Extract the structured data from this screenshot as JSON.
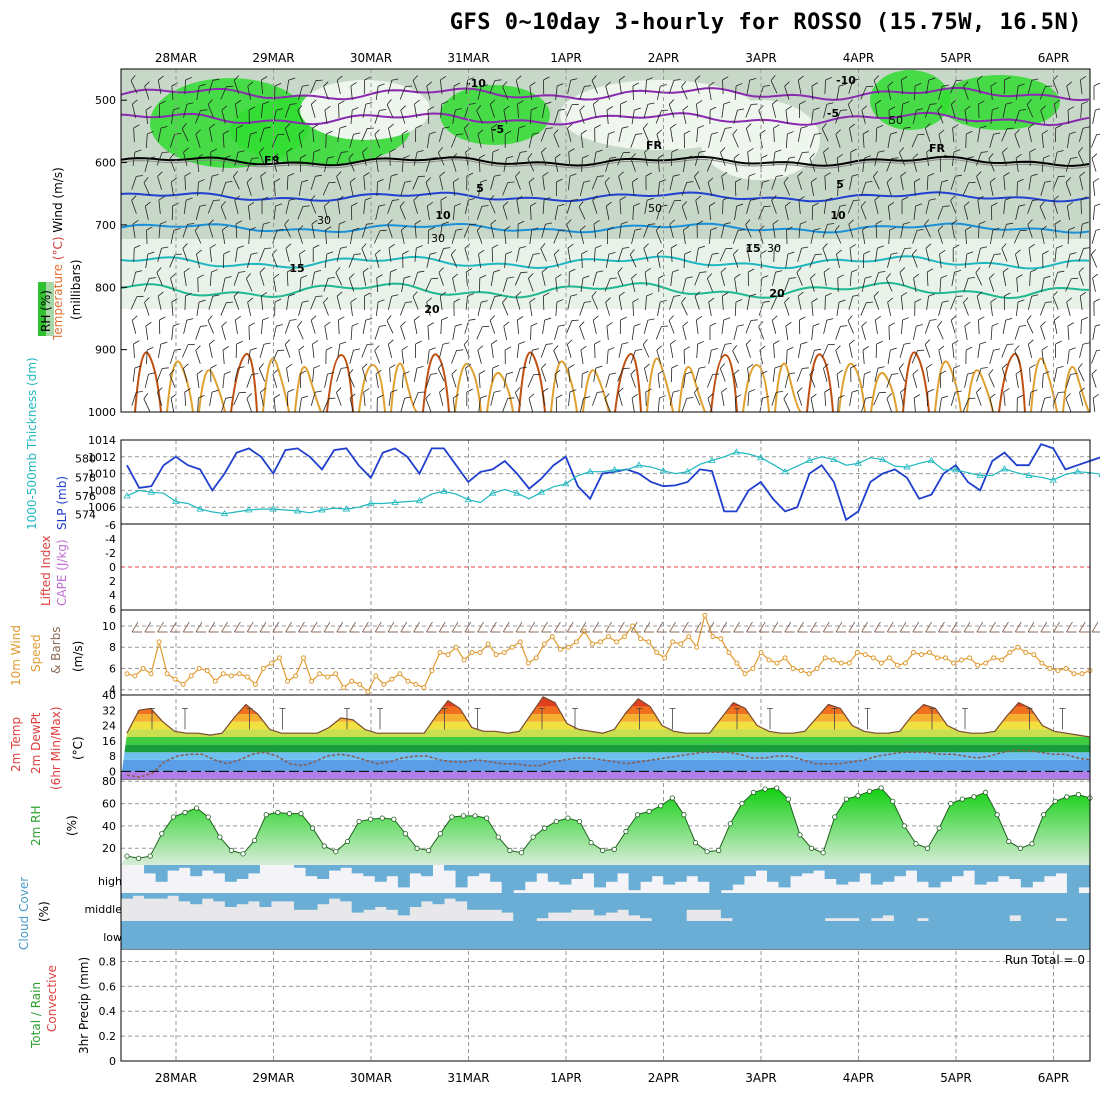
{
  "title": "GFS 0~10day 3-hourly for ROSSO (15.75W, 16.5N)",
  "dates": [
    "28MAR",
    "29MAR",
    "30MAR",
    "31MAR",
    "1APR",
    "2APR",
    "3APR",
    "4APR",
    "5APR",
    "6APR"
  ],
  "colors": {
    "grid": "#999999",
    "slp": "#1f3fcc",
    "thickness": "#20b8c0",
    "wind10m": "#e09a30",
    "barb": "#8a6a55",
    "rh_green": "#30c030",
    "cloud": "#6aaed6",
    "cape_zero": "#e04040"
  },
  "panels": {
    "upper": {
      "ylabel_parts": [
        {
          "text": "Wind",
          "color": "#000000"
        },
        {
          "text": " (m/s)",
          "color": "#000000"
        },
        {
          "text": "(°C)",
          "color": "#d04040"
        },
        {
          "text": "Temperature",
          "color": "#e07030"
        }
      ],
      "rh_key": "RH (%)",
      "pressure_label": "(millibars)",
      "pressure_ticks": [
        "500",
        "600",
        "700",
        "800",
        "900",
        "1000"
      ],
      "contour_labels": [
        {
          "text": "-10",
          "color": "#8a2ab0"
        },
        {
          "text": "-10",
          "color": "#8a2ab0"
        },
        {
          "text": "-5",
          "color": "#8a2ab0"
        },
        {
          "text": "-5",
          "color": "#8a2ab0"
        },
        {
          "text": "FR",
          "color": "#000000"
        },
        {
          "text": "FR",
          "color": "#000000"
        },
        {
          "text": "FR",
          "color": "#000000"
        },
        {
          "text": "5",
          "color": "#2040d0"
        },
        {
          "text": "5",
          "color": "#2040d0"
        },
        {
          "text": "10",
          "color": "#1a90d8"
        },
        {
          "text": "10",
          "color": "#1a90d8"
        },
        {
          "text": "15",
          "color": "#20b8c0"
        },
        {
          "text": "15",
          "color": "#20b8c0"
        },
        {
          "text": "20",
          "color": "#20b890"
        },
        {
          "text": "20",
          "color": "#20b890"
        },
        {
          "text": "30",
          "color": "#999999"
        },
        {
          "text": "30",
          "color": "#999999"
        },
        {
          "text": "50",
          "color": "#999999"
        },
        {
          "text": "30",
          "color": "#999999"
        },
        {
          "text": "50",
          "color": "#999999"
        }
      ]
    },
    "slp": {
      "label_thickness": "1000-500mb Thickness (dm)",
      "label_slp": "SLP (mb)",
      "left_ticks": [
        "580",
        "578",
        "576",
        "574"
      ],
      "right_ticks": [
        "1014",
        "1012",
        "1010",
        "1008",
        "1006"
      ]
    },
    "cape": {
      "label_li": "Lifted Index",
      "label_cape": "CAPE (J/kg)",
      "ticks": [
        "-6",
        "-4",
        "-2",
        "0",
        "2",
        "4",
        "6"
      ]
    },
    "wind": {
      "label_a": "10m Wind",
      "label_b": "Speed",
      "label_c": "& Barbs",
      "unit": "(m/s)",
      "ticks": [
        "10",
        "8",
        "6",
        "4"
      ]
    },
    "temp": {
      "label_a": "2m Temp",
      "label_b": "2m DewPt",
      "label_c": "(6hr Min/Max)",
      "unit": "(°C)",
      "ticks": [
        "40",
        "32",
        "24",
        "16",
        "8",
        "0"
      ]
    },
    "rh": {
      "label": "2m RH",
      "unit": "(%)",
      "ticks": [
        "80",
        "60",
        "40",
        "20"
      ]
    },
    "cloud": {
      "label": "Cloud Cover",
      "unit": "(%)",
      "layers": [
        "high",
        "middle",
        "low"
      ]
    },
    "precip": {
      "label_a": "Total / Rain",
      "label_b": "Convective",
      "label_c": "3hr Precip (mm)",
      "ticks": [
        "0.8",
        "0.6",
        "0.4",
        "0.2",
        "0"
      ],
      "run_total": "Run Total = 0"
    }
  },
  "chart_data": [
    {
      "type": "line",
      "name": "SLP",
      "ylabel": "SLP (mb)",
      "x_start": "27MAR 12Z",
      "x_step_hours": 3,
      "ylim": [
        1004,
        1014
      ],
      "values": [
        1011,
        1008.3,
        1008.5,
        1011,
        1012,
        1011,
        1010.5,
        1008,
        1010,
        1012.5,
        1013,
        1012,
        1010,
        1012.8,
        1013,
        1012,
        1010.5,
        1012.8,
        1013,
        1011,
        1009.5,
        1012.5,
        1013,
        1012,
        1010,
        1013,
        1013,
        1011,
        1009,
        1010.2,
        1010.5,
        1011.5,
        1010,
        1008.2,
        1009.4,
        1011,
        1012,
        1008.5,
        1007,
        1010,
        1010.2,
        1010.5,
        1010,
        1009,
        1008.5,
        1008.6,
        1009,
        1010.5,
        1010.3,
        1005.5,
        1005.5,
        1008,
        1009,
        1007,
        1005.5,
        1006,
        1010,
        1011,
        1009,
        1004.5,
        1005.5,
        1009,
        1010,
        1010.5,
        1009.5,
        1007,
        1007.5,
        1010,
        1011,
        1009,
        1008,
        1011.5,
        1012.5,
        1011,
        1011,
        1013.5,
        1013,
        1010.5,
        1011,
        1011.5,
        1012,
        1013.5,
        1013.6,
        1011,
        1011.5,
        1013,
        1012,
        1008.5,
        1009,
        1012,
        1012.2,
        1010,
        1010.3
      ]
    },
    {
      "type": "line",
      "name": "1000-500mb Thickness",
      "ylabel": "1000-500mb Thickness (dm)",
      "x_start": "27MAR 12Z",
      "x_step_hours": 3,
      "ylim": [
        573,
        582
      ],
      "values": [
        576,
        576.6,
        576.4,
        576.3,
        575.4,
        575.2,
        574.6,
        574.3,
        574.1,
        574.3,
        574.5,
        574.6,
        574.6,
        574.5,
        574.4,
        574.2,
        574.5,
        574.7,
        574.6,
        574.8,
        575.2,
        575.2,
        575.3,
        575.4,
        575.5,
        576.2,
        576.5,
        576.2,
        575.6,
        575.3,
        576.3,
        576.7,
        576.3,
        575.7,
        576.4,
        577,
        577.3,
        578.2,
        578.6,
        578.6,
        578.8,
        578.8,
        579.3,
        579.1,
        578.7,
        578.4,
        578.6,
        579.4,
        579.8,
        580.2,
        580.7,
        580.5,
        580.1,
        579.4,
        578.6,
        579.2,
        579.8,
        580.2,
        579.9,
        579.3,
        579.5,
        580.1,
        579.9,
        579.2,
        579.1,
        579.5,
        579.8,
        578.8,
        578.8,
        578.5,
        578.2,
        578.2,
        578.9,
        578.5,
        578.2,
        578.0,
        577.7,
        578.3,
        578.6,
        578.5,
        578.3,
        578.7,
        579.3,
        579.6,
        579.3,
        578.8,
        579.5,
        579.8,
        579.5,
        579.6,
        579.3,
        579.0,
        578.8,
        579.3,
        579.8,
        579.5,
        579.1,
        579.8,
        580.2,
        580.4,
        579.8,
        579.3,
        578.6,
        578.2
      ]
    },
    {
      "type": "line",
      "name": "10m Wind Speed",
      "ylabel": "(m/s)",
      "x_start": "27MAR 12Z",
      "x_step_hours": 3,
      "ylim": [
        3.5,
        11.5
      ],
      "values": [
        5.5,
        5.3,
        6,
        5.5,
        8.5,
        5.5,
        5,
        4.5,
        5.3,
        6,
        5.8,
        4.8,
        5.5,
        5.3,
        5.5,
        5.2,
        4.5,
        6,
        6.5,
        7,
        4.8,
        5.3,
        7,
        4.8,
        5.5,
        5.2,
        5.5,
        4.2,
        4.8,
        4.5,
        3.8,
        5.3,
        4.5,
        5,
        5.5,
        4.8,
        4.5,
        4.2,
        5.8,
        7.5,
        7.3,
        8,
        6.8,
        7.5,
        7.5,
        8.3,
        7.3,
        7.5,
        8,
        8.5,
        6.5,
        7,
        8.3,
        9,
        7.8,
        8,
        8.5,
        9.5,
        8.3,
        8.5,
        9,
        8.5,
        9,
        10,
        8.8,
        8.5,
        7.5,
        7,
        8.5,
        8.3,
        9,
        8,
        11,
        9,
        8.8,
        7.5,
        6.5,
        5.5,
        6,
        7.5,
        6.8,
        6.5,
        7,
        6,
        5.8,
        5.5,
        6,
        7,
        6.8,
        6.5,
        6.5,
        7.5,
        7.3,
        7,
        6.5,
        7,
        6.3,
        6.5,
        7.5,
        7.3,
        7.5,
        7,
        7,
        6.5,
        6.8,
        7,
        6.3,
        6.5,
        7,
        6.8,
        7.5,
        8,
        7.5,
        7.3,
        6.5,
        6,
        5.8,
        6,
        5.5,
        5.5,
        5.8
      ]
    },
    {
      "type": "area",
      "name": "2m Temp",
      "ylabel": "(°C)",
      "x_start": "27MAR 12Z",
      "x_step_hours": 3,
      "ylim": [
        -4,
        40
      ],
      "values": [
        20,
        32,
        33,
        26,
        21,
        20,
        20,
        19,
        20,
        28,
        35,
        30,
        22,
        20,
        20,
        20,
        20,
        23,
        28,
        27,
        22,
        20,
        20,
        20,
        20,
        20,
        29,
        37,
        33,
        23,
        21,
        21,
        20,
        21,
        30,
        39,
        36,
        25,
        22,
        21,
        20,
        22,
        31,
        38,
        34,
        24,
        21,
        20,
        20,
        20,
        28,
        36,
        33,
        24,
        21,
        20,
        20,
        21,
        28,
        35,
        33,
        24,
        21,
        20,
        20,
        21,
        29,
        35,
        33,
        24,
        21,
        20,
        20,
        21,
        29,
        36,
        33,
        24,
        21,
        20,
        19,
        18
      ]
    },
    {
      "type": "line",
      "name": "2m DewPt",
      "ylabel": "(°C)",
      "x_start": "27MAR 12Z",
      "x_step_hours": 3,
      "ylim": [
        -4,
        40
      ],
      "values": [
        -2,
        -3,
        -1,
        5,
        8,
        9,
        9,
        6,
        4,
        6,
        9,
        10,
        8,
        4,
        3,
        5,
        8,
        9,
        8,
        6,
        4,
        5,
        7,
        8,
        8,
        6,
        5,
        5,
        6,
        5,
        4,
        4,
        3,
        3,
        5,
        6,
        7,
        7,
        6,
        5,
        4,
        5,
        6,
        7,
        8,
        9,
        10,
        10,
        10,
        9,
        7,
        7,
        8,
        8,
        6,
        4,
        4,
        4,
        5,
        6,
        8,
        9,
        10,
        10,
        10,
        9,
        9,
        8,
        7,
        8,
        10,
        11,
        11,
        10,
        9,
        9,
        7,
        6
      ]
    },
    {
      "type": "area",
      "name": "2m RH",
      "ylabel": "(%)",
      "x_start": "27MAR 12Z",
      "x_step_hours": 3,
      "ylim": [
        5,
        82
      ],
      "values": [
        13,
        11,
        13,
        33,
        48,
        52,
        56,
        48,
        30,
        18,
        15,
        27,
        50,
        52,
        51,
        51,
        38,
        22,
        17,
        26,
        44,
        46,
        47,
        46,
        33,
        20,
        18,
        33,
        48,
        49,
        49,
        47,
        30,
        18,
        16,
        30,
        38,
        44,
        47,
        44,
        25,
        18,
        19,
        35,
        50,
        53,
        58,
        65,
        50,
        25,
        17,
        18,
        42,
        60,
        70,
        73,
        74,
        64,
        32,
        20,
        16,
        48,
        64,
        67,
        71,
        74,
        62,
        40,
        24,
        20,
        38,
        60,
        64,
        66,
        70,
        50,
        26,
        20,
        24,
        50,
        62,
        66,
        68,
        65
      ]
    },
    {
      "type": "area",
      "name": "Cloud Cover (high)",
      "ylabel": "(%)",
      "x_start": "27MAR 12Z",
      "x_step_hours": 3,
      "ylim": [
        0,
        100
      ],
      "values": [
        0,
        0,
        30,
        60,
        20,
        10,
        40,
        20,
        30,
        60,
        50,
        30,
        0,
        0,
        0,
        10,
        40,
        50,
        20,
        10,
        30,
        40,
        60,
        40,
        80,
        30,
        40,
        0,
        20,
        80,
        40,
        30,
        60,
        100,
        90,
        60,
        30,
        60,
        70,
        50,
        30,
        80,
        60,
        30,
        90,
        60,
        40,
        70,
        60,
        40,
        60,
        100,
        90,
        70,
        40,
        20,
        60,
        80,
        40,
        30,
        20,
        50,
        70,
        60,
        30,
        70,
        60,
        40,
        20,
        60,
        80,
        60,
        40,
        20,
        70,
        60,
        40,
        50,
        80,
        60,
        40,
        30,
        100,
        80
      ]
    },
    {
      "type": "area",
      "name": "Cloud Cover (middle)",
      "ylabel": "(%)",
      "x_start": "27MAR 12Z",
      "x_step_hours": 3,
      "ylim": [
        0,
        100
      ],
      "values": [
        20,
        10,
        20,
        20,
        10,
        30,
        40,
        20,
        30,
        50,
        40,
        30,
        50,
        30,
        30,
        60,
        60,
        40,
        20,
        30,
        70,
        60,
        50,
        60,
        80,
        50,
        30,
        40,
        20,
        30,
        60,
        60,
        60,
        70,
        100,
        100,
        90,
        70,
        70,
        60,
        60,
        80,
        70,
        60,
        80,
        90,
        100,
        100,
        100,
        60,
        60,
        60,
        90,
        100,
        100,
        100,
        100,
        100,
        100,
        100,
        100,
        90,
        90,
        90,
        100,
        90,
        80,
        100,
        100,
        90,
        100,
        100,
        100,
        100,
        100,
        100,
        100,
        80,
        100,
        100,
        100,
        90,
        100,
        100
      ]
    },
    {
      "type": "area",
      "name": "Cloud Cover (low)",
      "ylabel": "(%)",
      "x_start": "27MAR 12Z",
      "x_step_hours": 3,
      "ylim": [
        0,
        100
      ],
      "values": [
        100,
        100,
        100,
        100,
        100,
        100,
        100,
        100,
        100,
        100,
        100,
        100,
        100,
        100,
        100,
        100,
        100,
        100,
        100,
        100,
        100,
        100,
        100,
        100,
        100,
        100,
        100,
        100,
        100,
        100,
        100,
        100,
        100,
        100,
        100,
        100,
        100,
        100,
        100,
        100,
        100,
        100,
        100,
        100,
        100,
        100,
        100,
        100,
        100,
        100,
        100,
        100,
        100,
        100,
        100,
        100,
        100,
        100,
        100,
        100,
        100,
        100,
        100,
        100,
        100,
        100,
        100,
        100,
        100,
        100,
        100,
        100,
        100,
        100,
        100,
        100,
        100,
        100,
        100,
        100,
        100,
        100,
        100,
        100
      ]
    },
    {
      "type": "bar",
      "name": "3hr Precip",
      "ylabel": "3hr Precip (mm)",
      "ylim": [
        0,
        0.9
      ],
      "values": []
    }
  ]
}
